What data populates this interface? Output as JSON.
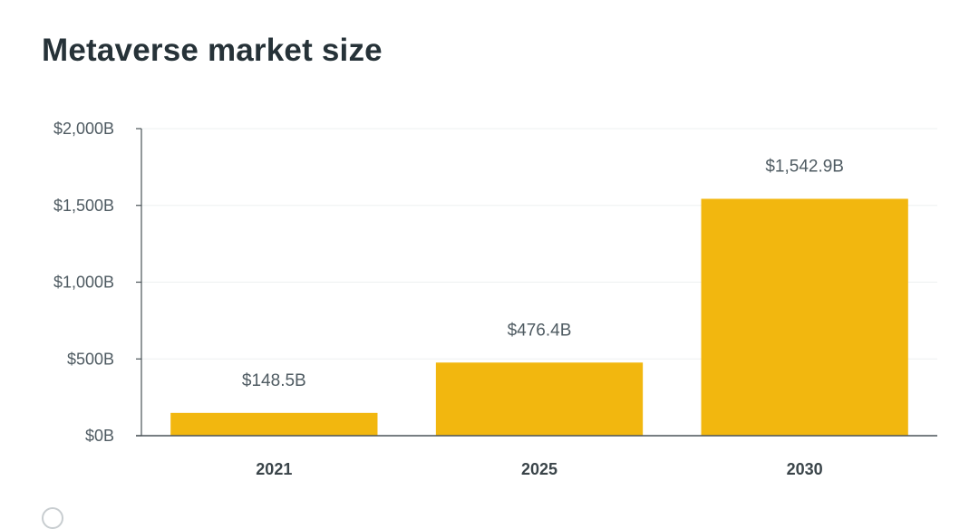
{
  "chart_data": {
    "type": "bar",
    "title": "Metaverse market size",
    "categories": [
      "2021",
      "2025",
      "2030"
    ],
    "values": [
      148.5,
      476.4,
      1542.9
    ],
    "data_labels": [
      "$148.5B",
      "$476.4B",
      "$1,542.9B"
    ],
    "yticks": [
      {
        "value": 0,
        "label": "$0B"
      },
      {
        "value": 500,
        "label": "$500B"
      },
      {
        "value": 1000,
        "label": "$1,000B"
      },
      {
        "value": 1500,
        "label": "$1,500B"
      },
      {
        "value": 2000,
        "label": "$2,000B"
      }
    ],
    "xlabel": "",
    "ylabel": "",
    "ylim": [
      0,
      2000
    ],
    "grid": true,
    "bar_color": "#f2b70f"
  }
}
